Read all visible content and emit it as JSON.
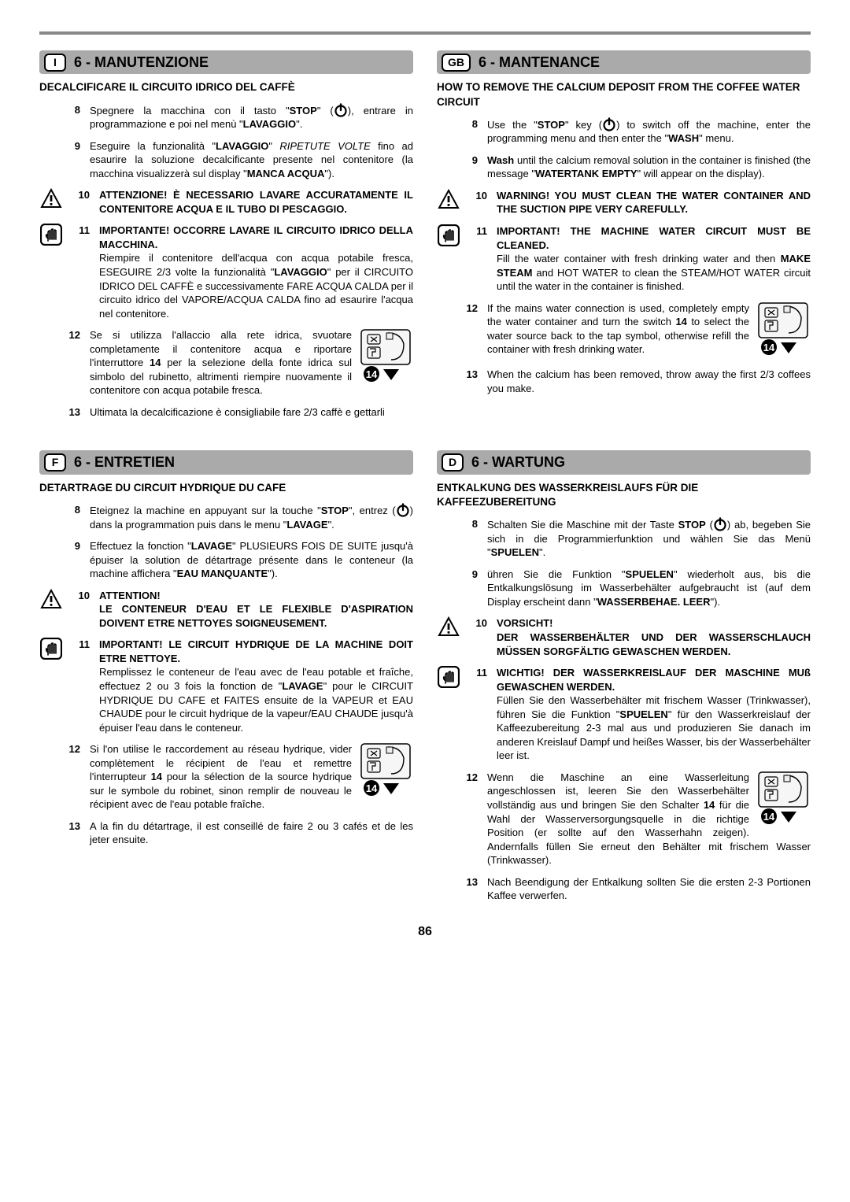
{
  "page_number": "86",
  "colors": {
    "rule": "#888888",
    "header_bg": "#aaaaaa",
    "text": "#000000",
    "bg": "#ffffff"
  },
  "icons": {
    "warning": "triangle-exclaim",
    "hand": "hand-stop",
    "power": "power-symbol"
  },
  "top_left": {
    "lang": "I",
    "title": "6 - MANUTENZIONE",
    "subtitle": "DECALCIFICARE IL CIRCUITO IDRICO DEL CAFFÈ",
    "items": [
      {
        "n": "8",
        "icon": "",
        "text": "Spegnere la macchina con il tasto \"<b>STOP</b>\" (⏻), entrare in programmazione e poi nel menù \"<b>LAVAGGIO</b>\"."
      },
      {
        "n": "9",
        "icon": "",
        "text": "Eseguire la funzionalità \"<b>LAVAGGIO</b>\" <i>RIPETUTE VOLTE</i> fino ad esaurire la soluzione decalcificante presente nel contenitore (la macchina visualizzerà sul display \"<b>MANCA ACQUA</b>\")."
      },
      {
        "n": "10",
        "icon": "warning",
        "text": "<b>ATTENZIONE! È NECESSARIO LAVARE ACCURATAMENTE IL CONTENITORE ACQUA E IL TUBO DI PESCAGGIO.</b>"
      },
      {
        "n": "11",
        "icon": "hand",
        "text": "<b>IMPORTANTE! OCCORRE LAVARE IL CIRCUITO IDRICO DELLA MACCHINA.</b><br>Riempire il contenitore dell'acqua con acqua potabile fresca, ESEGUIRE 2/3 volte la funzionalità \"<b>LAVAGGIO</b>\" per il CIRCUITO IDRICO DEL CAFFÈ e successivamente FARE ACQUA CALDA per il circuito idrico del VAPORE/ACQUA CALDA fino ad esaurire l'acqua nel contenitore."
      },
      {
        "n": "12",
        "icon": "",
        "text": "Se si utilizza l'allaccio alla rete idrica, svuotare completamente il contenitore acqua e riportare l'interruttore <b>14</b> per la selezione della fonte idrica sul simbolo del rubinetto, altrimenti riempire nuovamente il contenitore con acqua potabile fresca.",
        "diagram": true
      },
      {
        "n": "13",
        "icon": "",
        "text": "Ultimata la decalcificazione è consigliabile fare 2/3 caffè e gettarli"
      }
    ]
  },
  "top_right": {
    "lang": "GB",
    "title": "6 - MANTENANCE",
    "subtitle": "HOW TO REMOVE THE CALCIUM DEPOSIT FROM THE COFFEE WATER CIRCUIT",
    "items": [
      {
        "n": "8",
        "icon": "",
        "text": "Use the \"<b>STOP</b>\" key (⏻) to switch off the machine, enter the programming menu and then enter the \"<b>WASH</b>\" menu."
      },
      {
        "n": "9",
        "icon": "",
        "text": "<b>Wash</b> until the calcium removal solution in the container is finished (the message \"<b>WATERTANK EMPTY</b>\" will appear on the display)."
      },
      {
        "n": "10",
        "icon": "warning",
        "text": "<b>WARNING! YOU MUST CLEAN THE WATER CONTAINER AND THE SUCTION PIPE VERY CAREFULLY.</b>"
      },
      {
        "n": "11",
        "icon": "hand",
        "text": "<b>IMPORTANT! THE MACHINE WATER CIRCUIT MUST BE CLEANED.</b><br>Fill the water container with fresh drinking water and then <b>MAKE STEAM</b> and HOT WATER to clean the STEAM/HOT WATER circuit until the water in the container is finished."
      },
      {
        "n": "12",
        "icon": "",
        "text": "If the mains water connection is used, completely empty the water container and turn the switch <b>14</b> to select the water source back to the tap symbol, otherwise refill the container with fresh drinking water.",
        "diagram": true
      },
      {
        "n": "13",
        "icon": "",
        "text": "When the calcium has been removed, throw away the first 2/3 coffees you make."
      }
    ]
  },
  "bottom_left": {
    "lang": "F",
    "title": "6 - ENTRETIEN",
    "subtitle": "DETARTRAGE DU CIRCUIT HYDRIQUE DU CAFE",
    "items": [
      {
        "n": "8",
        "icon": "",
        "text": "Eteignez la machine en appuyant sur la touche \"<b>STOP</b>\", entrez (⏻) dans la programmation puis dans le menu \"<b>LAVAGE</b>\"."
      },
      {
        "n": "9",
        "icon": "",
        "text": "Effectuez la fonction \"<b>LAVAGE</b>\" PLUSIEURS FOIS DE SUITE jusqu'à épuiser la solution de détartrage présente dans le conteneur (la machine affichera \"<b>EAU MANQUANTE</b>\")."
      },
      {
        "n": "10",
        "icon": "warning",
        "text": "<b>ATTENTION!<br>LE CONTENEUR D'EAU ET LE FLEXIBLE D'ASPIRATION DOIVENT ETRE NETTOYES SOIGNEUSEMENT.</b>"
      },
      {
        "n": "11",
        "icon": "hand",
        "text": "<b>IMPORTANT! LE CIRCUIT HYDRIQUE DE LA MACHINE DOIT ETRE NETTOYE.</b><br>Remplissez le conteneur de l'eau avec de l'eau potable et fraîche, effectuez 2 ou 3 fois la fonction de \"<b>LAVAGE</b>\" pour le CIRCUIT HYDRIQUE DU CAFE et FAITES ensuite de la VAPEUR et EAU CHAUDE pour le circuit hydrique de la vapeur/EAU CHAUDE jusqu'à épuiser l'eau dans le conteneur."
      },
      {
        "n": "12",
        "icon": "",
        "text": "Si l'on utilise le raccordement au réseau hydrique, vider complètement le récipient de l'eau et remettre l'interrupteur <b>14</b> pour la sélection de la source hydrique sur le symbole du robinet, sinon remplir de nouveau le récipient avec de l'eau potable fraîche.",
        "diagram": true
      },
      {
        "n": "13",
        "icon": "",
        "text": "A la fin du détartrage, il est conseillé de faire 2 ou 3 cafés et de les jeter ensuite."
      }
    ]
  },
  "bottom_right": {
    "lang": "D",
    "title": "6 - WARTUNG",
    "subtitle": "ENTKALKUNG DES WASSERKREISLAUFS FÜR DIE KAFFEEZUBEREITUNG",
    "items": [
      {
        "n": "8",
        "icon": "",
        "text": "Schalten Sie die Maschine mit der Taste <b>STOP</b> (⏻) ab, begeben Sie sich in die Programmierfunktion und wählen Sie das Menü \"<b>SPUELEN</b>\"."
      },
      {
        "n": "9",
        "icon": "",
        "text": "ühren Sie die Funktion \"<b>SPUELEN</b>\" wiederholt aus, bis die Entkalkungslösung im Wasserbehälter aufgebraucht ist (auf dem Display erscheint dann \"<b>WASSERBEHAE. LEER</b>\")."
      },
      {
        "n": "10",
        "icon": "warning",
        "text": "<b>VORSICHT!<br>DER WASSERBEHÄLTER UND DER WASSERSCHLAUCH MÜSSEN SORGFÄLTIG GEWASCHEN WERDEN.</b>"
      },
      {
        "n": "11",
        "icon": "hand",
        "text": "<b>WICHTIG! DER WASSERKREISLAUF DER MASCHINE MUß GEWASCHEN WERDEN.</b><br>Füllen Sie den Wasserbehälter mit frischem Wasser (Trinkwasser), führen Sie die Funktion \"<b>SPUELEN</b>\" für den Wasserkreislauf der Kaffeezubereitung 2-3 mal aus und produzieren Sie danach im anderen Kreislauf Dampf und heißes Wasser, bis der Wasserbehälter leer ist."
      },
      {
        "n": "12",
        "icon": "",
        "text": "Wenn die Maschine an eine Wasserleitung angeschlossen ist, leeren Sie den Wasserbehälter vollständig aus und bringen Sie den Schalter <b>14</b> für die Wahl der Wasserversorgungsquelle in die richtige Position (er sollte auf den Wasserhahn zeigen). Andernfalls füllen Sie erneut den Behälter mit frischem Wasser (Trinkwasser).",
        "diagram": true
      },
      {
        "n": "13",
        "icon": "",
        "text": "Nach Beendigung der Entkalkung sollten Sie die ersten 2-3 Portionen Kaffee verwerfen."
      }
    ]
  }
}
